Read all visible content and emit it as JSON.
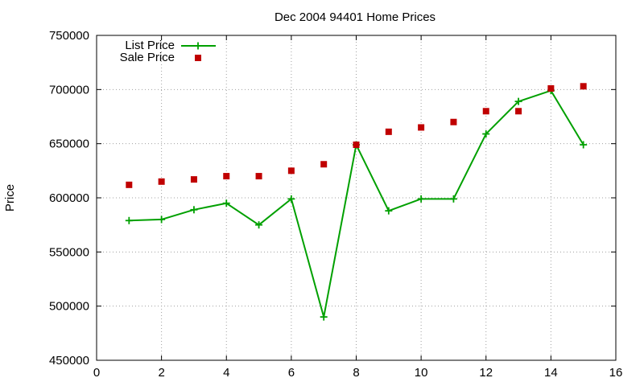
{
  "chart_data": {
    "type": "scatter",
    "title": "Dec 2004 94401 Home Prices",
    "xlabel": "",
    "ylabel": "Price",
    "xlim": [
      0,
      16
    ],
    "ylim": [
      450000,
      750000
    ],
    "x_ticks": [
      0,
      2,
      4,
      6,
      8,
      10,
      12,
      14,
      16
    ],
    "y_ticks": [
      450000,
      500000,
      550000,
      600000,
      650000,
      700000,
      750000
    ],
    "grid": true,
    "legend_position": "top-left",
    "series": [
      {
        "name": "List Price",
        "style": "linespoints",
        "marker": "plus",
        "color": "#00a000",
        "x": [
          1,
          2,
          3,
          4,
          5,
          6,
          7,
          8,
          9,
          10,
          11,
          12,
          13,
          14,
          15
        ],
        "y": [
          579000,
          580000,
          589000,
          595000,
          575000,
          599000,
          490000,
          649000,
          588000,
          599000,
          599000,
          659000,
          689000,
          699000,
          649000
        ]
      },
      {
        "name": "Sale Price",
        "style": "points",
        "marker": "square",
        "color": "#c00000",
        "x": [
          1,
          2,
          3,
          4,
          5,
          6,
          7,
          8,
          9,
          10,
          11,
          12,
          13,
          14,
          15
        ],
        "y": [
          612000,
          615000,
          617000,
          620000,
          620000,
          625000,
          631000,
          649000,
          661000,
          665000,
          670000,
          680000,
          680000,
          701000,
          703000
        ]
      }
    ]
  }
}
